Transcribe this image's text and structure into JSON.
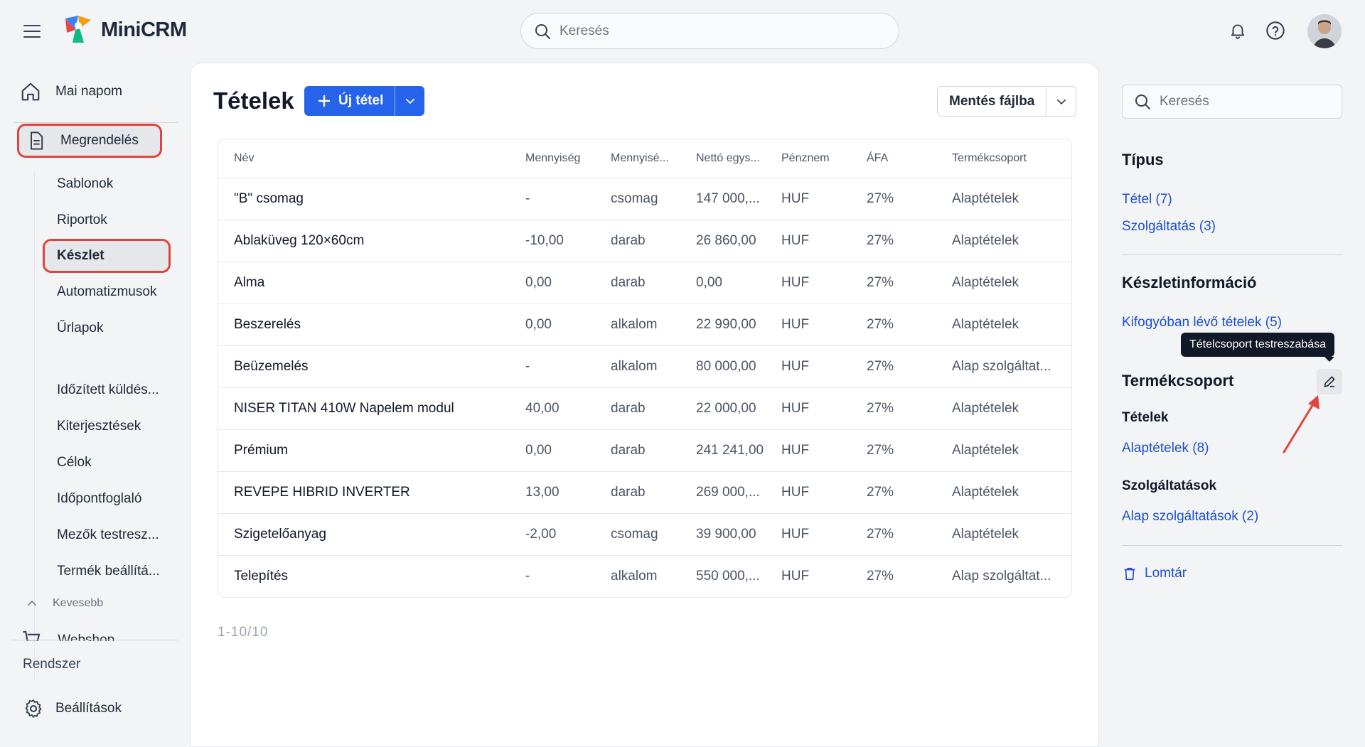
{
  "header": {
    "brand": "MiniCRM",
    "search_placeholder": "Keresés",
    "icons": [
      "menu-icon",
      "bell-icon",
      "help-icon"
    ]
  },
  "sidebar": {
    "mai_napom": "Mai napom",
    "megrendeles": "Megrendelés",
    "sub_items_top": [
      "Sablonok",
      "Riportok"
    ],
    "keszlet": "Készlet",
    "sub_items_mid": [
      "Automatizmusok",
      "Űrlapok"
    ],
    "sub_items_bottom": [
      "Időzített küldés...",
      "Kiterjesztések",
      "Célok",
      "Időpontfoglaló",
      "Mezők testresz...",
      "Termék beállítá..."
    ],
    "kevesebb": "Kevesebb",
    "cut_item": "Webshop",
    "rendszer": "Rendszer",
    "beallitasok": "Beállítások"
  },
  "main": {
    "title": "Tételek",
    "new_button": "Új tétel",
    "save_button": "Mentés fájlba",
    "columns": [
      "Név",
      "Mennyiség",
      "Mennyisé...",
      "Nettó egys...",
      "Pénznem",
      "ÁFA",
      "Termékcsoport"
    ],
    "rows": [
      [
        "\"B\" csomag",
        "-",
        "csomag",
        "147 000,...",
        "HUF",
        "27%",
        "Alaptételek"
      ],
      [
        "Ablaküveg 120×60cm",
        "-10,00",
        "darab",
        "26 860,00",
        "HUF",
        "27%",
        "Alaptételek"
      ],
      [
        "Alma",
        "0,00",
        "darab",
        "0,00",
        "HUF",
        "27%",
        "Alaptételek"
      ],
      [
        "Beszerelés",
        "0,00",
        "alkalom",
        "22 990,00",
        "HUF",
        "27%",
        "Alaptételek"
      ],
      [
        "Beüzemelés",
        "-",
        "alkalom",
        "80 000,00",
        "HUF",
        "27%",
        "Alap szolgáltat..."
      ],
      [
        "NISER TITAN 410W Napelem modul",
        "40,00",
        "darab",
        "22 000,00",
        "HUF",
        "27%",
        "Alaptételek"
      ],
      [
        "Prémium",
        "0,00",
        "darab",
        "241 241,00",
        "HUF",
        "27%",
        "Alaptételek"
      ],
      [
        "REVEPE HIBRID INVERTER",
        "13,00",
        "darab",
        "269 000,...",
        "HUF",
        "27%",
        "Alaptételek"
      ],
      [
        "Szigetelőanyag",
        "-2,00",
        "csomag",
        "39 900,00",
        "HUF",
        "27%",
        "Alaptételek"
      ],
      [
        "Telepítés",
        "-",
        "alkalom",
        "550 000,...",
        "HUF",
        "27%",
        "Alap szolgáltat..."
      ]
    ],
    "pagination": "1-10/10"
  },
  "right_panel": {
    "search_placeholder": "Keresés",
    "tipus_title": "Típus",
    "tipus_links": [
      "Tétel (7)",
      "Szolgáltatás (3)"
    ],
    "keszletinfo_title": "Készletinformáció",
    "keszletinfo_link": "Kifogyóban lévő tételek (5)",
    "tooltip": "Tételcsoport testreszabása",
    "termekcsoport_title": "Termékcsoport",
    "tetelek_subtitle": "Tételek",
    "tetelek_link": "Alaptételek (8)",
    "szolg_subtitle": "Szolgáltatások",
    "szolg_link": "Alap szolgáltatások (2)",
    "lomtar": "Lomtár"
  },
  "colors": {
    "primary": "#2563eb",
    "link": "#1d4ed8",
    "highlight_border": "#e0443e",
    "annotation_arrow": "#e0443e"
  }
}
